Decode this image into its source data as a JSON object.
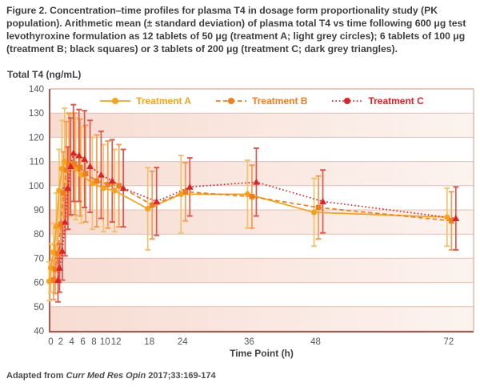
{
  "figure": {
    "caption": "Figure 2. Concentration–time profiles for plasma T4 in dosage form proportionality study (PK population). Arithmetic mean (± standard deviation) of plasma total T4 vs time following 600 μg test levothyroxine formulation as 12 tablets of 50 μg (treatment A; light grey circles); 6 tablets of 100 μg (treatment B; black squares) or 3 tablets of 200 μg (treatment C; dark grey triangles).",
    "source_prefix": "Adapted from",
    "source_journal": "Curr Med Res Opin",
    "source_citation": "2017;33:169-174"
  },
  "chart_data": {
    "type": "line",
    "title": "",
    "ylabel": "Total T4 (ng/mL)",
    "xlabel": "Time Point (h)",
    "ylim": [
      40,
      140
    ],
    "xlim": [
      0,
      76.5
    ],
    "y_ticks": [
      140,
      130,
      120,
      110,
      100,
      90,
      80,
      70,
      60,
      50,
      40
    ],
    "x_ticks": [
      0,
      2,
      4,
      6,
      8,
      10,
      12,
      18,
      24,
      36,
      48,
      72
    ],
    "grid": "horizontal",
    "legend_position": "top-center",
    "pink_bands": [
      130,
      110,
      90,
      70,
      50
    ],
    "x": [
      0,
      0.5,
      1,
      1.5,
      2,
      2.5,
      3,
      4,
      5,
      6,
      8,
      10,
      12,
      18,
      24,
      36,
      48,
      72
    ],
    "series": [
      {
        "name": "Treatment A",
        "marker": "circle",
        "line": "solid",
        "color": "#F5A31A",
        "bar_color": "#F1C36B",
        "offset": -2,
        "values": [
          60.5,
          66,
          72.5,
          83,
          98,
          107,
          110,
          108.5,
          107,
          104.5,
          101,
          99,
          98,
          90.5,
          96.5,
          96.5,
          89,
          87
        ],
        "sd": [
          8,
          10,
          12,
          14,
          17,
          20,
          22,
          21,
          21,
          20,
          19,
          18,
          17,
          17,
          16,
          14,
          14,
          12
        ]
      },
      {
        "name": "Treatment B",
        "marker": "square",
        "line": "dashed",
        "color": "#F07D1E",
        "bar_color": "#F49C50",
        "offset": 3.5,
        "values": [
          61,
          65.5,
          72,
          84,
          97,
          106.5,
          109,
          109,
          107.5,
          105,
          102,
          100.5,
          100,
          92,
          97.5,
          95.5,
          91,
          85.5
        ],
        "sd": [
          8,
          10,
          12,
          14,
          17,
          20,
          21,
          21,
          20,
          20,
          19,
          18,
          17,
          14,
          12,
          13,
          13,
          12
        ]
      },
      {
        "name": "Treatment C",
        "marker": "triangle",
        "line": "dotted",
        "color": "#DF2127",
        "bar_color": "#E2574B",
        "offset": 9,
        "values": [
          61,
          66,
          73,
          85,
          99,
          108,
          113.5,
          112.5,
          111,
          108,
          104.5,
          102,
          99,
          93.5,
          99.5,
          101.5,
          93.5,
          86.5
        ],
        "sd": [
          9,
          10,
          12,
          14,
          17,
          20,
          20,
          19,
          20,
          19,
          18,
          17,
          16,
          14,
          12,
          14,
          13,
          13
        ]
      }
    ],
    "colors": {
      "band_left": "#F7DCD2",
      "band_right": "#FCF3EF",
      "gridline": "#E4BFB4",
      "frame": "#DFA99E",
      "axis": "#A8453A",
      "tick_text": "#55565A",
      "axis_title_text": "#414042"
    }
  }
}
